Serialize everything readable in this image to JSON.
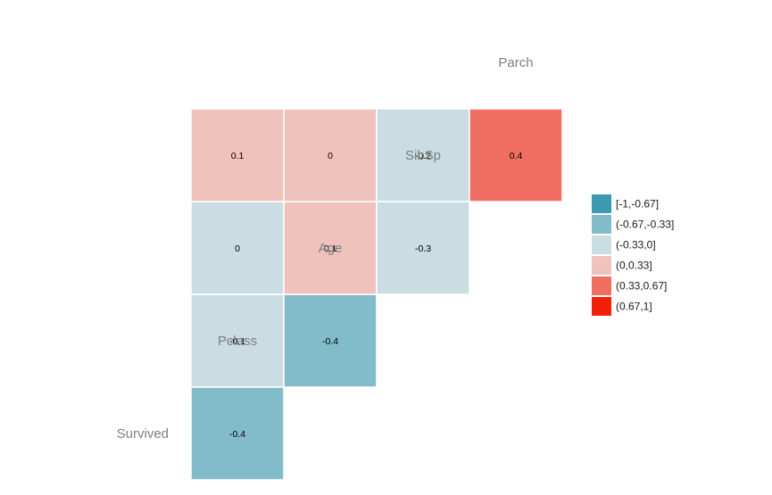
{
  "chart_data": {
    "type": "heatmap",
    "variables": [
      "Survived",
      "Pclass",
      "Age",
      "SibSp",
      "Parch"
    ],
    "cells": [
      {
        "row": "Pclass",
        "col": "Survived",
        "value": -0.4,
        "label": "-0.4",
        "bin": 1
      },
      {
        "row": "Age",
        "col": "Survived",
        "value": -0.1,
        "label": "-0.1",
        "bin": 2
      },
      {
        "row": "Age",
        "col": "Pclass",
        "value": -0.4,
        "label": "-0.4",
        "bin": 1
      },
      {
        "row": "SibSp",
        "col": "Survived",
        "value": 0,
        "label": "0",
        "bin": 2
      },
      {
        "row": "SibSp",
        "col": "Pclass",
        "value": 0.1,
        "label": "0.1",
        "bin": 3
      },
      {
        "row": "SibSp",
        "col": "Age",
        "value": -0.3,
        "label": "-0.3",
        "bin": 2
      },
      {
        "row": "Parch",
        "col": "Survived",
        "value": 0.1,
        "label": "0.1",
        "bin": 3
      },
      {
        "row": "Parch",
        "col": "Pclass",
        "value": 0,
        "label": "0",
        "bin": 3
      },
      {
        "row": "Parch",
        "col": "Age",
        "value": -0.2,
        "label": "-0.2",
        "bin": 2
      },
      {
        "row": "Parch",
        "col": "SibSp",
        "value": 0.4,
        "label": "0.4",
        "bin": 4
      }
    ],
    "legend": {
      "placement": "right",
      "bins": [
        {
          "label": "[-1,-0.67]",
          "color": "#3d99b0"
        },
        {
          "label": "(-0.67,-0.33]",
          "color": "#82bbc9"
        },
        {
          "label": "(-0.33,0]",
          "color": "#c9dde3"
        },
        {
          "label": "(0,0.33]",
          "color": "#efc2bc"
        },
        {
          "label": "(0.33,0.67]",
          "color": "#f06f61"
        },
        {
          "label": "(0.67,1]",
          "color": "#f41e0a"
        }
      ]
    },
    "colors": {
      "cell_border": "#ffffff",
      "variable_label": "#7f7f7f"
    }
  }
}
